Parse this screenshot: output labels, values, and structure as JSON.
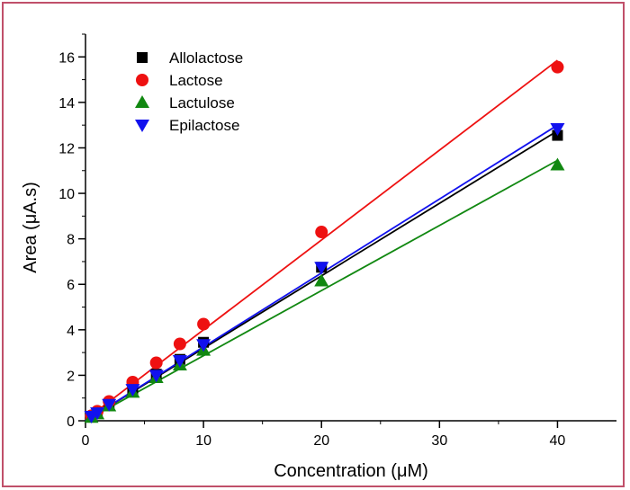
{
  "chart_data": {
    "type": "scatter",
    "xlabel": "Concentration (μM)",
    "ylabel": "Area (μA.s)",
    "xlim": [
      0,
      45
    ],
    "ylim": [
      0,
      17
    ],
    "xticks": [
      0,
      10,
      20,
      30,
      40
    ],
    "yticks": [
      0,
      2,
      4,
      6,
      8,
      10,
      12,
      14,
      16
    ],
    "grid": false,
    "legend_position": "top-left",
    "series": [
      {
        "name": "Allolactose",
        "marker": "square",
        "color": "#000000",
        "x": [
          0.5,
          1,
          2,
          4,
          6,
          8,
          10,
          20,
          40
        ],
        "y": [
          0.18,
          0.33,
          0.75,
          1.35,
          2.05,
          2.7,
          3.45,
          6.75,
          12.55
        ],
        "fit": {
          "x": [
            0,
            40
          ],
          "y": [
            0.0,
            12.75
          ]
        }
      },
      {
        "name": "Lactose",
        "marker": "circle",
        "color": "#ee1111",
        "x": [
          0.5,
          1,
          2,
          4,
          6,
          8,
          10,
          20,
          40
        ],
        "y": [
          0.22,
          0.42,
          0.85,
          1.7,
          2.55,
          3.38,
          4.25,
          8.3,
          15.55
        ],
        "fit": {
          "x": [
            0,
            40
          ],
          "y": [
            0.05,
            15.85
          ]
        }
      },
      {
        "name": "Lactulose",
        "marker": "triangle-up",
        "color": "#118811",
        "x": [
          0.5,
          1,
          2,
          4,
          6,
          8,
          10,
          20,
          40
        ],
        "y": [
          0.15,
          0.3,
          0.65,
          1.25,
          1.9,
          2.45,
          3.1,
          6.15,
          11.25
        ],
        "fit": {
          "x": [
            0,
            40
          ],
          "y": [
            0.0,
            11.45
          ]
        }
      },
      {
        "name": "Epilactose",
        "marker": "triangle-down",
        "color": "#1111ee",
        "x": [
          0.5,
          1,
          2,
          4,
          6,
          8,
          10,
          20,
          40
        ],
        "y": [
          0.2,
          0.35,
          0.72,
          1.38,
          2.0,
          2.65,
          3.35,
          6.75,
          12.85
        ],
        "fit": {
          "x": [
            0,
            40
          ],
          "y": [
            0.0,
            13.0
          ]
        }
      }
    ]
  }
}
